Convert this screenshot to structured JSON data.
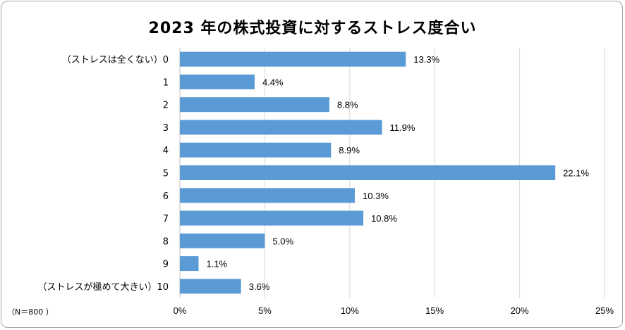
{
  "chart_data": {
    "type": "bar",
    "orientation": "horizontal",
    "title": "2023  年の株式投資に対するストレス度合い",
    "note": "（N＝800 ）",
    "categories": [
      "（ストレスは全くない）0",
      "1",
      "2",
      "3",
      "4",
      "5",
      "6",
      "7",
      "8",
      "9",
      "（ストレスが極めて大きい）10"
    ],
    "values": [
      13.3,
      4.4,
      8.8,
      11.9,
      8.9,
      22.1,
      10.3,
      10.8,
      5.0,
      1.1,
      3.6
    ],
    "data_labels": [
      "13.3%",
      "4.4%",
      "8.8%",
      "11.9%",
      "8.9%",
      "22.1%",
      "10.3%",
      "10.8%",
      "5.0%",
      "1.1%",
      "3.6%"
    ],
    "xlim": [
      0,
      25
    ],
    "xticks": [
      0,
      5,
      10,
      15,
      20,
      25
    ],
    "xtick_labels": [
      "0%",
      "5%",
      "10%",
      "15%",
      "20%",
      "25%"
    ],
    "grid": "vertical",
    "legend": "none",
    "bar_color": "#5b9bd5",
    "grid_color": "#d9d9d9"
  }
}
